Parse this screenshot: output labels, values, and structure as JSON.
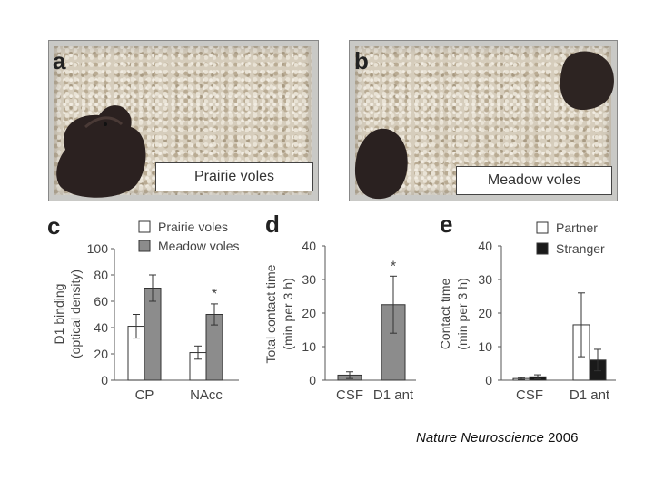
{
  "photos": {
    "a": {
      "letter": "a",
      "label": "Prairie voles"
    },
    "b": {
      "letter": "b",
      "label": "Meadow voles"
    }
  },
  "chart_data": [
    {
      "type": "bar",
      "panel": "c",
      "categories": [
        "CP",
        "NAcc"
      ],
      "series": [
        {
          "name": "Prairie voles",
          "values": [
            41,
            21
          ],
          "errors": [
            9,
            5
          ],
          "color": "#ffffff"
        },
        {
          "name": "Meadow voles",
          "values": [
            70,
            50
          ],
          "errors": [
            10,
            8
          ],
          "color": "#8c8c8c"
        }
      ],
      "ylabel": [
        "D1 binding",
        "(optical density)"
      ],
      "ylim": [
        0,
        100
      ],
      "yticks": [
        0,
        20,
        40,
        60,
        80,
        100
      ],
      "annotations": [
        {
          "text": "*",
          "category": "NAcc",
          "series": "Meadow voles"
        }
      ],
      "legend": "top-right"
    },
    {
      "type": "bar",
      "panel": "d",
      "categories": [
        "CSF",
        "D1 ant"
      ],
      "series": [
        {
          "name": "",
          "values": [
            1.5,
            22.5
          ],
          "errors": [
            1,
            8.5
          ],
          "color": "#8c8c8c"
        }
      ],
      "ylabel": [
        "Total contact time",
        "(min per 3 h)"
      ],
      "ylim": [
        0,
        40
      ],
      "yticks": [
        0,
        10,
        20,
        30,
        40
      ],
      "annotations": [
        {
          "text": "*",
          "category": "D1 ant"
        }
      ]
    },
    {
      "type": "bar",
      "panel": "e",
      "categories": [
        "CSF",
        "D1 ant"
      ],
      "series": [
        {
          "name": "Partner",
          "values": [
            0.5,
            16.5
          ],
          "errors": [
            0.3,
            9.5
          ],
          "color": "#ffffff"
        },
        {
          "name": "Stranger",
          "values": [
            1.0,
            6
          ],
          "errors": [
            0.6,
            3.2
          ],
          "color": "#1a1a1a"
        }
      ],
      "ylabel": [
        "Contact time",
        "(min per 3 h)"
      ],
      "ylim": [
        0,
        40
      ],
      "yticks": [
        0,
        10,
        20,
        30,
        40
      ],
      "legend": "top-right"
    }
  ],
  "credit": {
    "journal": "Nature Neuroscience",
    "year": "2006"
  }
}
